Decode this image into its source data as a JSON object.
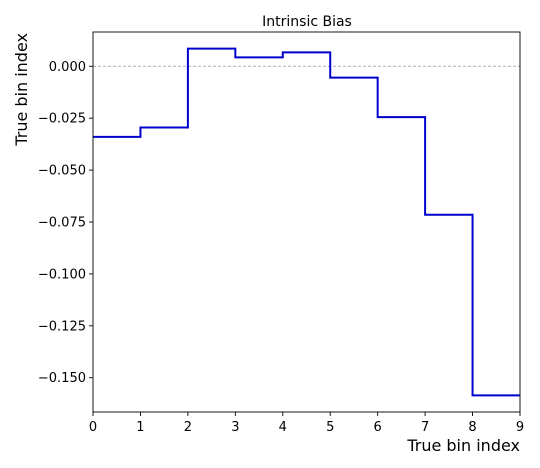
{
  "chart_data": {
    "type": "line",
    "title": "Intrinsic Bias",
    "xlabel": "True bin index",
    "ylabel": "True bin index",
    "xlim": [
      0,
      9
    ],
    "ylim": [
      -0.1665,
      0.0165
    ],
    "x_ticks": [
      0,
      1,
      2,
      3,
      4,
      5,
      6,
      7,
      8,
      9
    ],
    "x_tick_labels": [
      "0",
      "1",
      "2",
      "3",
      "4",
      "5",
      "6",
      "7",
      "8",
      "9"
    ],
    "y_ticks": [
      0.0,
      -0.025,
      -0.05,
      -0.075,
      -0.1,
      -0.125,
      -0.15
    ],
    "y_tick_labels": [
      "0.000",
      "−0.025",
      "−0.050",
      "−0.075",
      "−0.100",
      "−0.125",
      "−0.150"
    ],
    "grid": false,
    "reference_line": {
      "y": 0.0,
      "style": "dashed",
      "color": "#b0b0b0"
    },
    "series": [
      {
        "style": "steps",
        "color": "#0000cc",
        "bin_edges": [
          0,
          1,
          2,
          3,
          4,
          5,
          6,
          7,
          8,
          9
        ],
        "values": [
          -0.034,
          -0.0295,
          0.0085,
          0.0043,
          0.0067,
          -0.0055,
          -0.0245,
          -0.0715,
          -0.1585
        ]
      }
    ]
  }
}
